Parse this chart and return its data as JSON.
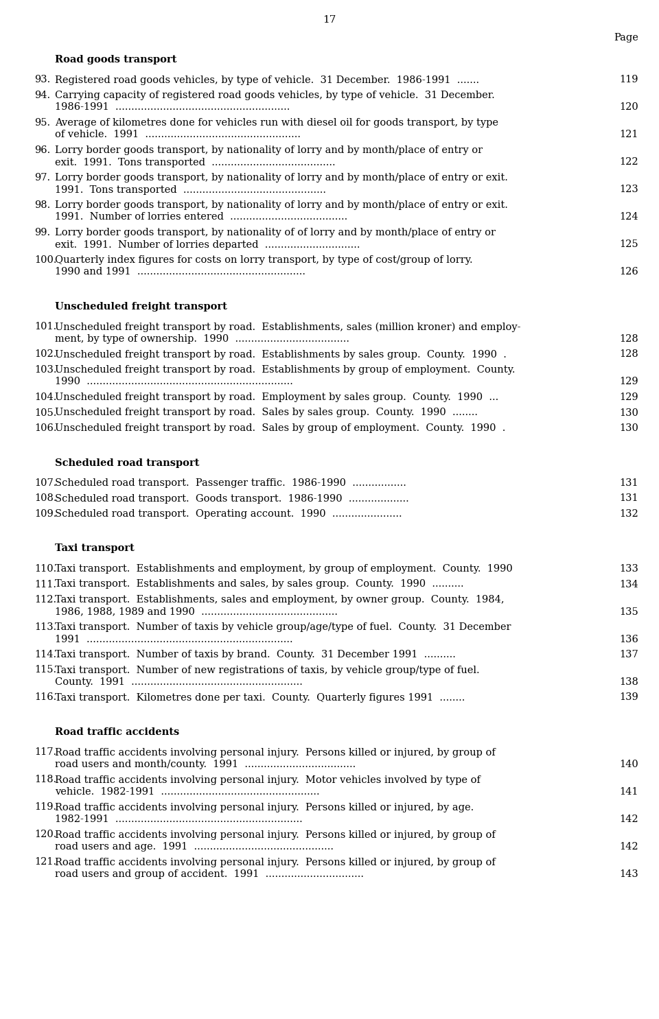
{
  "page_number": "17",
  "page_label": "Page",
  "background_color": "#ffffff",
  "text_color": "#000000",
  "sections": [
    {
      "heading": "Road goods transport",
      "entries": [
        {
          "number": "93.",
          "lines": [
            "Registered road goods vehicles, by type of vehicle.  31 December.  1986-1991  ......."
          ],
          "page": "119"
        },
        {
          "number": "94.",
          "lines": [
            "Carrying capacity of registered road goods vehicles, by type of vehicle.  31 December.",
            "1986-1991  ......................................................."
          ],
          "page": "120"
        },
        {
          "number": "95.",
          "lines": [
            "Average of kilometres done for vehicles run with diesel oil for goods transport, by type",
            "of vehicle.  1991  ................................................."
          ],
          "page": "121"
        },
        {
          "number": "96.",
          "lines": [
            "Lorry border goods transport, by nationality of lorry and by month/place of entry or",
            "exit.  1991.  Tons transported  ......................................."
          ],
          "page": "122"
        },
        {
          "number": "97.",
          "lines": [
            "Lorry border goods transport, by nationality of lorry and by month/place of entry or exit.",
            "1991.  Tons transported  ............................................."
          ],
          "page": "123"
        },
        {
          "number": "98.",
          "lines": [
            "Lorry border goods transport, by nationality of lorry and by month/place of entry or exit.",
            "1991.  Number of lorries entered  ....................................."
          ],
          "page": "124"
        },
        {
          "number": "99.",
          "lines": [
            "Lorry border goods transport, by nationality of of lorry and by month/place of entry or",
            "exit.  1991.  Number of lorries departed  .............................."
          ],
          "page": "125"
        },
        {
          "number": "100.",
          "lines": [
            "Quarterly index figures for costs on lorry transport, by type of cost/group of lorry.",
            "1990 and 1991  ....................................................."
          ],
          "page": "126"
        }
      ]
    },
    {
      "heading": "Unscheduled freight transport",
      "entries": [
        {
          "number": "101.",
          "lines": [
            "Unscheduled freight transport by road.  Establishments, sales (million kroner) and employ-",
            "ment, by type of ownership.  1990  ...................................."
          ],
          "page": "128"
        },
        {
          "number": "102.",
          "lines": [
            "Unscheduled freight transport by road.  Establishments by sales group.  County.  1990  ."
          ],
          "page": "128"
        },
        {
          "number": "103.",
          "lines": [
            "Unscheduled freight transport by road.  Establishments by group of employment.  County.",
            "1990  ................................................................."
          ],
          "page": "129"
        },
        {
          "number": "104.",
          "lines": [
            "Unscheduled freight transport by road.  Employment by sales group.  County.  1990  ..."
          ],
          "page": "129"
        },
        {
          "number": "105.",
          "lines": [
            "Unscheduled freight transport by road.  Sales by sales group.  County.  1990  ........"
          ],
          "page": "130"
        },
        {
          "number": "106.",
          "lines": [
            "Unscheduled freight transport by road.  Sales by group of employment.  County.  1990  ."
          ],
          "page": "130"
        }
      ]
    },
    {
      "heading": "Scheduled road transport",
      "entries": [
        {
          "number": "107.",
          "lines": [
            "Scheduled road transport.  Passenger traffic.  1986-1990  ................."
          ],
          "page": "131"
        },
        {
          "number": "108.",
          "lines": [
            "Scheduled road transport.  Goods transport.  1986-1990  ..................."
          ],
          "page": "131"
        },
        {
          "number": "109.",
          "lines": [
            "Scheduled road transport.  Operating account.  1990  ......................"
          ],
          "page": "132"
        }
      ]
    },
    {
      "heading": "Taxi transport",
      "entries": [
        {
          "number": "110.",
          "lines": [
            "Taxi transport.  Establishments and employment, by group of employment.  County.  1990"
          ],
          "page": "133"
        },
        {
          "number": "111.",
          "lines": [
            "Taxi transport.  Establishments and sales, by sales group.  County.  1990  .........."
          ],
          "page": "134"
        },
        {
          "number": "112.",
          "lines": [
            "Taxi transport.  Establishments, sales and employment, by owner group.  County.  1984,",
            "1986, 1988, 1989 and 1990  ..........................................."
          ],
          "page": "135"
        },
        {
          "number": "113.",
          "lines": [
            "Taxi transport.  Number of taxis by vehicle group/age/type of fuel.  County.  31 December",
            "1991  ................................................................."
          ],
          "page": "136"
        },
        {
          "number": "114.",
          "lines": [
            "Taxi transport.  Number of taxis by brand.  County.  31 December 1991  .........."
          ],
          "page": "137"
        },
        {
          "number": "115.",
          "lines": [
            "Taxi transport.  Number of new registrations of taxis, by vehicle group/type of fuel.",
            "County.  1991  ......................................................"
          ],
          "page": "138"
        },
        {
          "number": "116.",
          "lines": [
            "Taxi transport.  Kilometres done per taxi.  County.  Quarterly figures 1991  ........"
          ],
          "page": "139"
        }
      ]
    },
    {
      "heading": "Road traffic accidents",
      "entries": [
        {
          "number": "117.",
          "lines": [
            "Road traffic accidents involving personal injury.  Persons killed or injured, by group of",
            "road users and month/county.  1991  ..................................."
          ],
          "page": "140"
        },
        {
          "number": "118.",
          "lines": [
            "Road traffic accidents involving personal injury.  Motor vehicles involved by type of",
            "vehicle.  1982-1991  .................................................."
          ],
          "page": "141"
        },
        {
          "number": "119.",
          "lines": [
            "Road traffic accidents involving personal injury.  Persons killed or injured, by age.",
            "1982-1991  ..........................................................."
          ],
          "page": "142"
        },
        {
          "number": "120.",
          "lines": [
            "Road traffic accidents involving personal injury.  Persons killed or injured, by group of",
            "road users and age.  1991  ............................................"
          ],
          "page": "142"
        },
        {
          "number": "121.",
          "lines": [
            "Road traffic accidents involving personal injury.  Persons killed or injured, by group of",
            "road users and group of accident.  1991  ..............................."
          ],
          "page": "143"
        }
      ]
    }
  ]
}
